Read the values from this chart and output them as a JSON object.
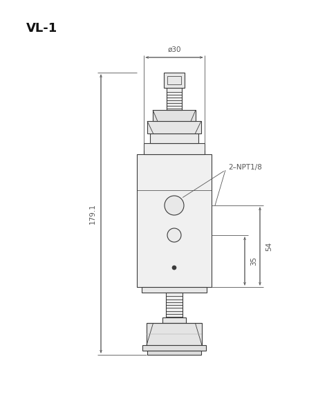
{
  "title": "VL-1",
  "bg_color": "#ffffff",
  "line_color": "#3a3a3a",
  "dim_color": "#555555",
  "title_fontsize": 13,
  "dim_fontsize": 7.5,
  "label_fontsize": 7.5,
  "annotations": {
    "label_npt": "2–NPT1/8",
    "dim_diameter": "ø30",
    "dim_height": "179.1",
    "dim_35": "35",
    "dim_54": "54"
  }
}
